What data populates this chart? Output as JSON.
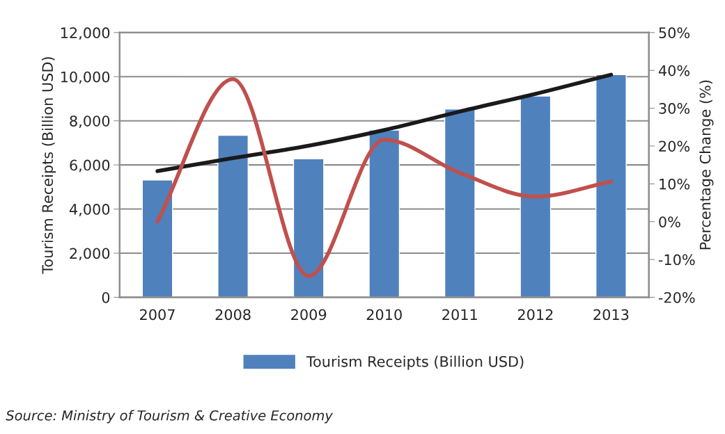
{
  "chart_data": {
    "type": "bar",
    "ylabel": "Tourism Receipts (Billion USD)",
    "y2label": "Percentage Change (%)",
    "categories": [
      "2007",
      "2008",
      "2009",
      "2010",
      "2011",
      "2012",
      "2013"
    ],
    "series": [
      {
        "name": "Tourism Receipts (Billion USD)",
        "color": "#4f81bd",
        "values": [
          5320,
          7340,
          6280,
          7580,
          8530,
          9120,
          10090
        ]
      },
      {
        "type": "line",
        "color": "#c0504d",
        "axis": "y2",
        "values": [
          0,
          37.7,
          -14.4,
          21.7,
          12.9,
          6.6,
          10.6
        ]
      },
      {
        "type": "line",
        "color": "#1a1a1a",
        "values": [
          5720,
          6310,
          6870,
          7580,
          8420,
          9220,
          10090
        ]
      }
    ],
    "ylim": [
      0,
      12000
    ],
    "yticks": [
      {
        "value": 0,
        "label": "0"
      },
      {
        "value": 2000,
        "label": "2,000"
      },
      {
        "value": 4000,
        "label": "4,000"
      },
      {
        "value": 6000,
        "label": "6,000"
      },
      {
        "value": 8000,
        "label": "8,000"
      },
      {
        "value": 10000,
        "label": "10,000"
      },
      {
        "value": 12000,
        "label": "12,000"
      }
    ],
    "y2lim": [
      -20,
      50
    ],
    "y2ticks": [
      {
        "value": -20,
        "label": "-20%"
      },
      {
        "value": -10,
        "label": "-10%"
      },
      {
        "value": 0,
        "label": "0%"
      },
      {
        "value": 10,
        "label": "10%"
      },
      {
        "value": 20,
        "label": "20%"
      },
      {
        "value": 30,
        "label": "30%"
      },
      {
        "value": 40,
        "label": "40%"
      },
      {
        "value": 50,
        "label": "50%"
      }
    ],
    "grid": "y",
    "legend": "bottom",
    "annotations": [
      "Source: Ministry of Tourism & Creative Economy"
    ]
  }
}
